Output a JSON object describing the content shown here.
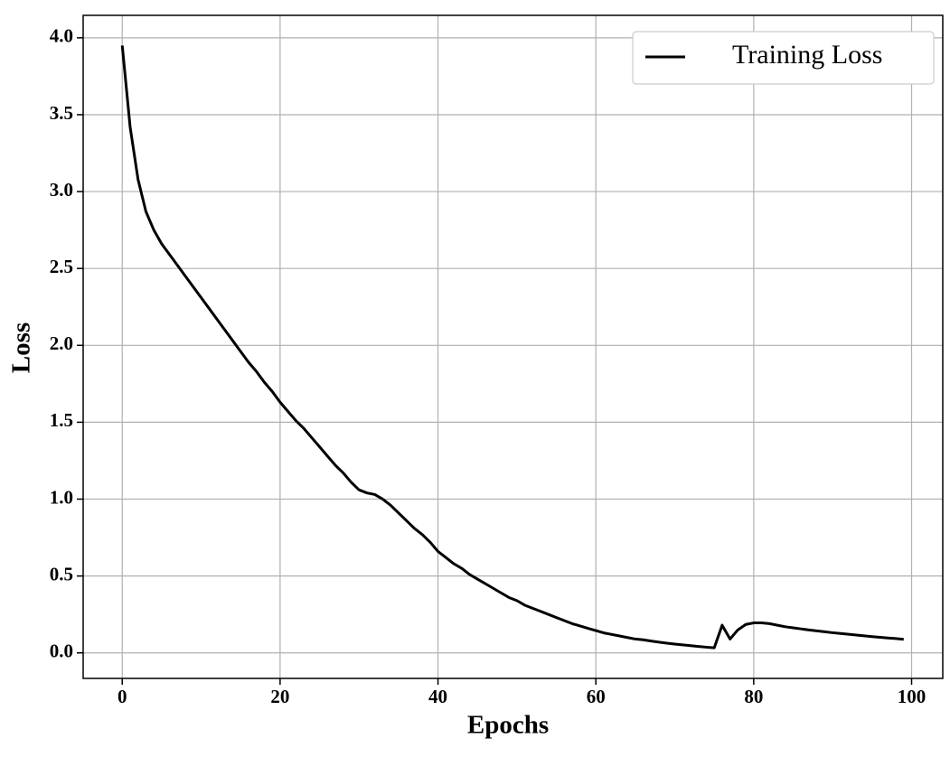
{
  "chart_data": {
    "type": "line",
    "xlabel": "Epochs",
    "ylabel": "Loss",
    "x": [
      0,
      1,
      2,
      3,
      4,
      5,
      6,
      7,
      8,
      9,
      10,
      11,
      12,
      13,
      14,
      15,
      16,
      17,
      18,
      19,
      20,
      21,
      22,
      23,
      24,
      25,
      26,
      27,
      28,
      29,
      30,
      31,
      32,
      33,
      34,
      35,
      36,
      37,
      38,
      39,
      40,
      41,
      42,
      43,
      44,
      45,
      46,
      47,
      48,
      49,
      50,
      51,
      52,
      53,
      54,
      55,
      56,
      57,
      58,
      59,
      60,
      61,
      62,
      63,
      64,
      65,
      66,
      67,
      68,
      69,
      70,
      71,
      72,
      73,
      74,
      75,
      76,
      77,
      78,
      79,
      80,
      81,
      82,
      83,
      84,
      85,
      86,
      87,
      88,
      89,
      90,
      91,
      92,
      93,
      94,
      95,
      96,
      97,
      98,
      99
    ],
    "series": [
      {
        "name": "Training Loss",
        "color": "#000000",
        "values": [
          3.95,
          3.42,
          3.08,
          2.87,
          2.75,
          2.66,
          2.59,
          2.52,
          2.45,
          2.38,
          2.31,
          2.24,
          2.17,
          2.1,
          2.03,
          1.96,
          1.89,
          1.83,
          1.76,
          1.7,
          1.63,
          1.57,
          1.51,
          1.46,
          1.4,
          1.34,
          1.28,
          1.22,
          1.17,
          1.11,
          1.06,
          1.04,
          1.03,
          1.0,
          0.96,
          0.91,
          0.86,
          0.81,
          0.77,
          0.72,
          0.66,
          0.62,
          0.58,
          0.55,
          0.51,
          0.48,
          0.45,
          0.42,
          0.39,
          0.36,
          0.34,
          0.31,
          0.29,
          0.27,
          0.25,
          0.23,
          0.21,
          0.19,
          0.175,
          0.16,
          0.145,
          0.13,
          0.12,
          0.11,
          0.1,
          0.09,
          0.085,
          0.077,
          0.07,
          0.063,
          0.057,
          0.052,
          0.047,
          0.042,
          0.037,
          0.033,
          0.18,
          0.09,
          0.15,
          0.185,
          0.195,
          0.195,
          0.19,
          0.18,
          0.17,
          0.163,
          0.156,
          0.149,
          0.143,
          0.137,
          0.131,
          0.126,
          0.121,
          0.116,
          0.111,
          0.106,
          0.101,
          0.097,
          0.093,
          0.088
        ]
      }
    ],
    "xlim": [
      -4.95,
      103.95
    ],
    "ylim": [
      -0.166,
      4.146
    ],
    "xticks": [
      0,
      20,
      40,
      60,
      80,
      100
    ],
    "yticks": [
      {
        "value": 0,
        "label": "0.0"
      },
      {
        "value": 0.5,
        "label": "0.5"
      },
      {
        "value": 1,
        "label": "1.0"
      },
      {
        "value": 1.5,
        "label": "1.5"
      },
      {
        "value": 2,
        "label": "2.0"
      },
      {
        "value": 2.5,
        "label": "2.5"
      },
      {
        "value": 3,
        "label": "3.0"
      },
      {
        "value": 3.5,
        "label": "3.5"
      },
      {
        "value": 4,
        "label": "4.0"
      }
    ],
    "grid": true,
    "legend": "upper right"
  }
}
